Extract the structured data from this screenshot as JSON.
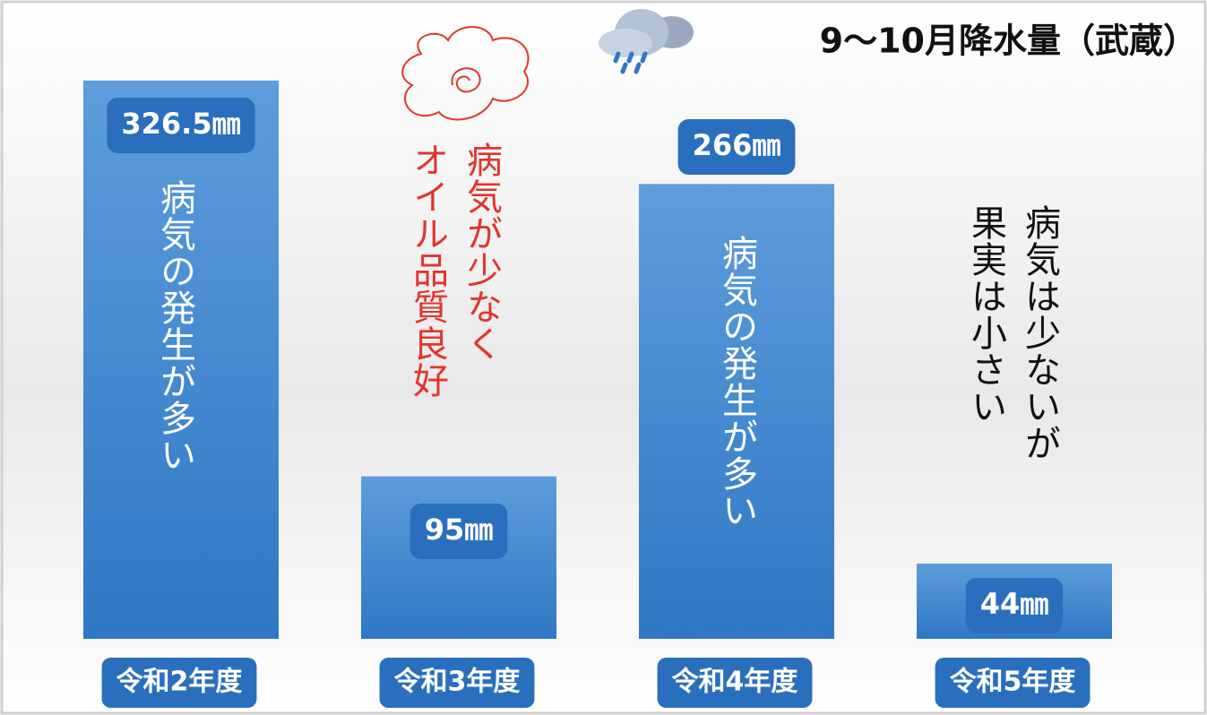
{
  "chart_data": {
    "type": "bar",
    "title": "9〜10月降水量（武蔵）",
    "categories": [
      "令和2年度",
      "令和3年度",
      "令和4年度",
      "令和5年度"
    ],
    "values": [
      326.5,
      95,
      266,
      44
    ],
    "value_labels": [
      "326.5㎜",
      "95㎜",
      "266㎜",
      "44㎜"
    ],
    "color": "#3d85cc",
    "ylim": [
      0,
      350
    ],
    "annotations": [
      [
        "病気の発生が多い"
      ],
      [
        "病気が少なく",
        "オイル品質良好"
      ],
      [
        "病気の発生が多い"
      ],
      [
        "病気は少ないが",
        "果実は小さい"
      ]
    ]
  }
}
